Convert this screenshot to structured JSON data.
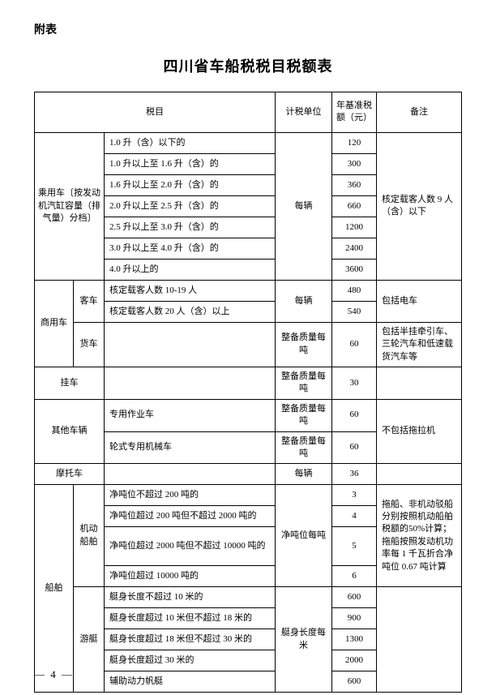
{
  "attachment_label": "附表",
  "title": "四川省车船税税目税额表",
  "page_number": "— 4 —",
  "headers": {
    "tax_item": "税目",
    "unit": "计税单位",
    "annual_rate": "年基准税额（元）",
    "remarks": "备注"
  },
  "colors": {
    "background": "#ffffff",
    "text": "#000000",
    "border": "#000000"
  },
  "typography": {
    "title_fontsize": 18,
    "label_fontsize": 14,
    "body_fontsize": 11,
    "font_family": "SimSun"
  },
  "rows": {
    "passenger_car_label": "乘用车〔按发动机汽缸容量（排气量）分档〕",
    "pc0": "1.0 升（含）以下的",
    "pc1": "1.0 升以上至 1.6 升（含）的",
    "pc2": "1.6 升以上至 2.0 升（含）的",
    "pc3": "2.0 升以上至 2.5 升（含）的",
    "pc4": "2.5 升以上至 3.0 升（含）的",
    "pc5": "3.0 升以上至 4.0 升（含）的",
    "pc6": "4.0 升以上的",
    "pca0": "120",
    "pca1": "300",
    "pca2": "360",
    "pca3": "660",
    "pca4": "1200",
    "pca5": "2400",
    "pca6": "3600",
    "pc_unit": "每辆",
    "pc_note": "核定载客人数 9 人（含）以下",
    "commercial_label": "商用车",
    "bus_label": "客车",
    "bus0": "核定载客人数 10-19 人",
    "bus1": "核定载客人数 20 人（含）以上",
    "bus_a0": "480",
    "bus_a1": "540",
    "bus_unit": "每辆",
    "bus_note": "包括电车",
    "truck_label": "货车",
    "truck_unit": "整备质量每吨",
    "truck_amount": "60",
    "truck_note": "包括半挂牵引车、三轮汽车和低速载货汽车等",
    "trailer_label": "挂车",
    "trailer_unit": "整备质量每吨",
    "trailer_amount": "30",
    "other_label": "其他车辆",
    "other0": "专用作业车",
    "other1": "轮式专用机械车",
    "other_unit0": "整备质量每吨",
    "other_unit1": "整备质量每吨",
    "other_a0": "60",
    "other_a1": "60",
    "other_note": "不包括拖拉机",
    "moto_label": "摩托车",
    "moto_unit": "每辆",
    "moto_amount": "36",
    "ship_label": "船舶",
    "motor_ship_label": "机动船舶",
    "ms0": "净吨位不超过 200 吨的",
    "ms1": "净吨位超过 200 吨但不超过 2000 吨的",
    "ms2": "净吨位超过 2000 吨但不超过 10000 吨的",
    "ms3": "净吨位超过 10000 吨的",
    "ms_unit": "净吨位每吨",
    "ms_a0": "3",
    "ms_a1": "4",
    "ms_a2": "5",
    "ms_a3": "6",
    "ms_note": "拖船、非机动驳船分别按照机动船舶税额的50%计算；拖船按照发动机功率每 1 千瓦折合净吨位 0.67 吨计算",
    "yacht_label": "游艇",
    "yt0": "艇身长度不超过 10 米的",
    "yt1": "艇身长度超过 10 米但不超过 18 米的",
    "yt2": "艇身长度超过 18 米但不超过 30 米的",
    "yt3": "艇身长度超过 30 米的",
    "yt4": "辅助动力帆艇",
    "yt_unit": "艇身长度每米",
    "yt_a0": "600",
    "yt_a1": "900",
    "yt_a2": "1300",
    "yt_a3": "2000",
    "yt_a4": "600"
  }
}
